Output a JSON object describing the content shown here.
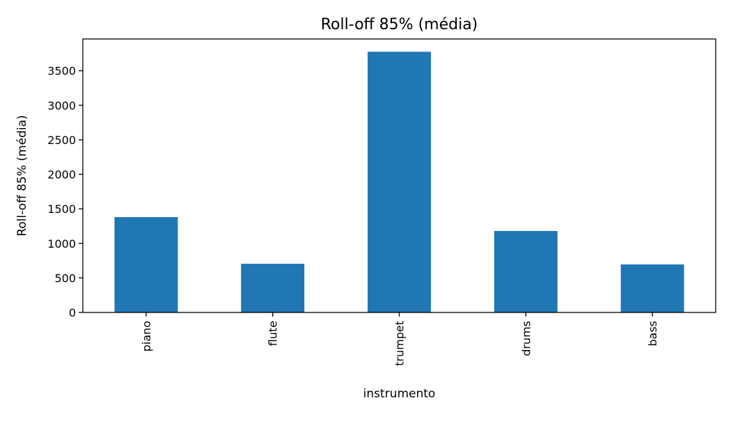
{
  "chart_data": {
    "type": "bar",
    "title": "Roll-off 85% (média)",
    "xlabel": "instrumento",
    "ylabel": "Roll-off 85% (média)",
    "categories": [
      "piano",
      "flute",
      "trumpet",
      "drums",
      "bass"
    ],
    "values": [
      1380,
      705,
      3775,
      1180,
      695
    ],
    "ylim": [
      0,
      3960
    ],
    "yticks": [
      0,
      500,
      1000,
      1500,
      2000,
      2500,
      3000,
      3500
    ],
    "grid": false,
    "bar_color": "#1f77b4"
  }
}
